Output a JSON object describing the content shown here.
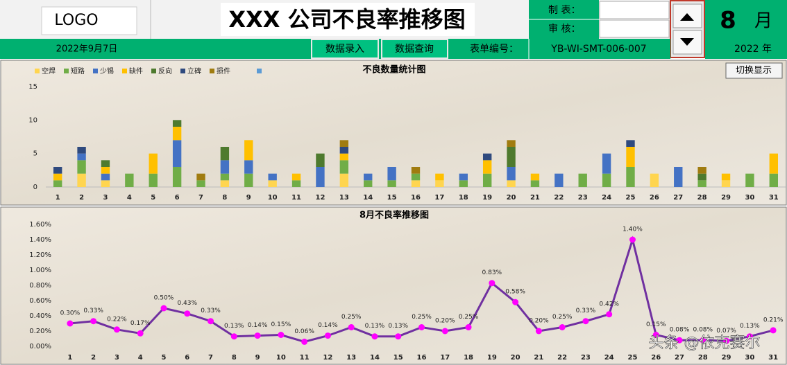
{
  "header": {
    "logo": "LOGO",
    "title": "XXX 公司不良率推移图",
    "made_by_label": "制 表：",
    "reviewed_by_label": "审 核：",
    "month": "8",
    "month_unit": "月",
    "date": "2022年9月7日",
    "buttons": [
      "数据录入",
      "数据查询"
    ],
    "form_no_label": "表单编号：",
    "form_no": "YB-WI-SMT-006-007",
    "year": "2022 年"
  },
  "toggle_button": "切换显示",
  "watermark": "头条 @依克赛尔",
  "chart_data": [
    {
      "type": "bar",
      "stacked": true,
      "title": "不良数量统计图",
      "categories": [
        "1",
        "2",
        "3",
        "4",
        "5",
        "6",
        "7",
        "8",
        "9",
        "10",
        "11",
        "12",
        "13",
        "14",
        "15",
        "16",
        "17",
        "18",
        "19",
        "20",
        "21",
        "22",
        "23",
        "24",
        "25",
        "26",
        "27",
        "28",
        "29",
        "30",
        "31"
      ],
      "series": [
        {
          "name": "空焊",
          "color": "#ffd54f",
          "values": [
            0,
            2,
            1,
            0,
            0,
            0,
            0,
            1,
            0,
            1,
            0,
            0,
            2,
            0,
            0,
            1,
            1,
            0,
            0,
            1,
            0,
            0,
            0,
            0,
            0,
            2,
            0,
            0,
            1,
            0,
            0
          ]
        },
        {
          "name": "短路",
          "color": "#70ad47",
          "values": [
            1,
            2,
            0,
            2,
            2,
            3,
            1,
            1,
            2,
            0,
            1,
            0,
            2,
            1,
            1,
            1,
            0,
            1,
            2,
            0,
            1,
            0,
            2,
            2,
            3,
            0,
            0,
            1,
            0,
            2,
            2
          ]
        },
        {
          "name": "少锡",
          "color": "#4472c4",
          "values": [
            0,
            1,
            1,
            0,
            0,
            4,
            0,
            2,
            2,
            1,
            0,
            3,
            0,
            1,
            2,
            0,
            0,
            1,
            0,
            2,
            0,
            2,
            0,
            3,
            0,
            0,
            3,
            0,
            0,
            0,
            0
          ]
        },
        {
          "name": "缺件",
          "color": "#ffc000",
          "values": [
            1,
            0,
            1,
            0,
            3,
            2,
            0,
            0,
            3,
            0,
            1,
            0,
            1,
            0,
            0,
            0,
            1,
            0,
            2,
            0,
            1,
            0,
            0,
            0,
            3,
            0,
            0,
            0,
            1,
            0,
            3
          ]
        },
        {
          "name": "反向",
          "color": "#4e7a2e",
          "values": [
            0,
            0,
            1,
            0,
            0,
            1,
            0,
            2,
            0,
            0,
            0,
            2,
            0,
            0,
            0,
            0,
            0,
            0,
            0,
            3,
            0,
            0,
            0,
            0,
            0,
            0,
            0,
            1,
            0,
            0,
            0
          ]
        },
        {
          "name": "立碑",
          "color": "#2f4a7e",
          "values": [
            1,
            1,
            0,
            0,
            0,
            0,
            0,
            0,
            0,
            0,
            0,
            0,
            1,
            0,
            0,
            0,
            0,
            0,
            1,
            0,
            0,
            0,
            0,
            0,
            1,
            0,
            0,
            0,
            0,
            0,
            0
          ]
        },
        {
          "name": "损件",
          "color": "#a07c10",
          "values": [
            0,
            0,
            0,
            0,
            0,
            0,
            1,
            0,
            0,
            0,
            0,
            0,
            1,
            0,
            0,
            1,
            0,
            0,
            0,
            1,
            0,
            0,
            0,
            0,
            0,
            0,
            0,
            1,
            0,
            0,
            0
          ]
        }
      ],
      "ylim": [
        0,
        15
      ],
      "yticks": [
        0,
        5,
        10,
        15
      ],
      "grid": false
    },
    {
      "type": "line",
      "title": "8月不良率推移图",
      "categories": [
        "1",
        "2",
        "3",
        "4",
        "5",
        "6",
        "7",
        "8",
        "9",
        "10",
        "11",
        "12",
        "13",
        "14",
        "15",
        "16",
        "17",
        "18",
        "19",
        "20",
        "21",
        "22",
        "23",
        "24",
        "25",
        "26",
        "27",
        "28",
        "29",
        "30",
        "31"
      ],
      "values": [
        0.3,
        0.33,
        0.22,
        0.17,
        0.5,
        0.43,
        0.33,
        0.13,
        0.14,
        0.15,
        0.06,
        0.14,
        0.25,
        0.13,
        0.13,
        0.25,
        0.2,
        0.25,
        0.83,
        0.58,
        0.2,
        0.25,
        0.33,
        0.42,
        1.4,
        0.15,
        0.08,
        0.08,
        0.07,
        0.13,
        0.21
      ],
      "value_labels": [
        "0.30%",
        "0.33%",
        "0.22%",
        "0.17%",
        "0.50%",
        "0.43%",
        "0.33%",
        "0.13%",
        "0.14%",
        "0.15%",
        "0.06%",
        "0.14%",
        "0.25%",
        "0.13%",
        "0.13%",
        "0.25%",
        "0.20%",
        "0.25%",
        "0.83%",
        "0.58%",
        "0.20%",
        "0.25%",
        "0.33%",
        "0.42%",
        "1.40%",
        "0.15%",
        "0.08%",
        "0.08%",
        "0.07%",
        "0.13%",
        "0.21%"
      ],
      "color": "#7030a0",
      "marker_color": "#ff00ff",
      "ylim": [
        0,
        1.6
      ],
      "yticks": [
        {
          "value": 0,
          "label": "0.00%"
        },
        {
          "value": 0.2,
          "label": "0.20%"
        },
        {
          "value": 0.4,
          "label": "0.40%"
        },
        {
          "value": 0.6,
          "label": "0.60%"
        },
        {
          "value": 0.8,
          "label": "0.80%"
        },
        {
          "value": 1.0,
          "label": "1.00%"
        },
        {
          "value": 1.2,
          "label": "1.20%"
        },
        {
          "value": 1.4,
          "label": "1.40%"
        },
        {
          "value": 1.6,
          "label": "1.60%"
        }
      ],
      "grid": false
    }
  ]
}
